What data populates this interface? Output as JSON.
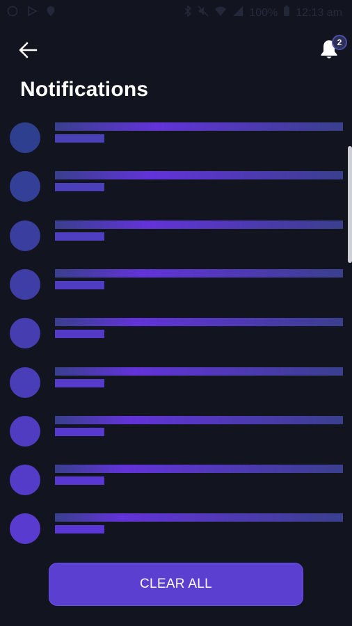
{
  "status_bar": {
    "battery_text": "100%",
    "time": "12:13 am",
    "icons": [
      "whatsapp-icon",
      "play-store-icon",
      "location-icon",
      "bluetooth-icon",
      "mute-icon",
      "wifi-icon",
      "signal-icon"
    ]
  },
  "header": {
    "back_icon": "arrow-left-icon",
    "bell_icon": "bell-icon",
    "badge_count": "2",
    "title": "Notifications"
  },
  "notifications": {
    "item_count": 9,
    "placeholder_colors": {
      "avatar_top": "#2f3f8f",
      "avatar_bottom": "#5a3bd0",
      "line_highlight": "#6233d8",
      "line_dim": "#3a3f8e"
    }
  },
  "footer": {
    "clear_all_label": "CLEAR ALL"
  },
  "colors": {
    "background": "#12151f",
    "accent": "#5a3fd0",
    "text": "#ffffff"
  }
}
